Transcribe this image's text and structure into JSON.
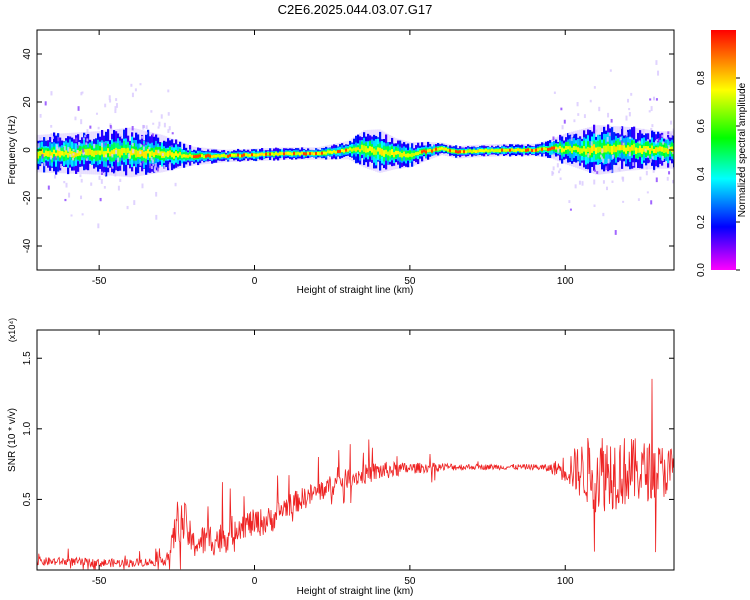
{
  "title": "C2E6.2025.044.03.07.G17",
  "chart_data": [
    {
      "type": "heatmap",
      "xlabel": "Height of straight line (km)",
      "ylabel": "Frequency (Hz)",
      "xlim": [
        -70,
        135
      ],
      "ylim": [
        -50,
        50
      ],
      "xticks": [
        -50,
        0,
        50,
        100
      ],
      "yticks": [
        -40,
        -20,
        0,
        20,
        40
      ],
      "colorbar": {
        "label": "Normalized spectral amplitude",
        "range": [
          0,
          1
        ],
        "ticks": [
          "0.0",
          "0.2",
          "0.4",
          "0.6",
          "0.8"
        ],
        "colormap": [
          "#ff00ff",
          "#0000ff",
          "#00ffff",
          "#00ff00",
          "#ffff00",
          "#ff0000"
        ]
      },
      "ridge": {
        "x": [
          -70,
          -50,
          -40,
          -30,
          -20,
          -10,
          0,
          10,
          20,
          30,
          35,
          40,
          45,
          50,
          55,
          60,
          65,
          70,
          80,
          90,
          95,
          100,
          110,
          120,
          130,
          135
        ],
        "freq": [
          -1.5,
          -1.2,
          -1.0,
          -1.5,
          -2.5,
          -2.5,
          -2.0,
          -1.5,
          -1.5,
          0,
          0.5,
          -0.5,
          -1.5,
          -2.0,
          -0.5,
          0.5,
          -1.0,
          -0.5,
          0,
          0,
          0.5,
          0.5,
          0,
          0.5,
          0,
          0
        ],
        "bandwidth_hz": [
          6,
          7,
          8,
          6,
          3,
          2,
          2,
          2,
          2,
          3,
          6,
          7,
          5,
          4,
          3,
          2,
          2,
          2,
          2,
          2,
          3,
          5,
          8,
          7,
          6,
          6
        ]
      }
    },
    {
      "type": "line",
      "xlabel": "Height of straight line (km)",
      "ylabel": "SNR (10 * v/v)",
      "y_multiplier": "(x10⁴)",
      "xlim": [
        -70,
        135
      ],
      "ylim": [
        0,
        1.7
      ],
      "xticks": [
        -50,
        0,
        50,
        100
      ],
      "yticks": [
        "0.5",
        "1.0",
        "1.5"
      ],
      "line_color": "#ee2222",
      "series": [
        {
          "x": [
            -70,
            -60,
            -50,
            -40,
            -30,
            -27,
            -25,
            -22,
            -20,
            -15,
            -10,
            -5,
            0,
            5,
            10,
            20,
            30,
            40,
            50,
            60,
            70,
            80,
            90,
            95,
            100,
            105,
            110,
            115,
            120,
            125,
            130,
            135
          ],
          "y": [
            0.06,
            0.06,
            0.05,
            0.05,
            0.06,
            0.12,
            0.35,
            0.32,
            0.18,
            0.22,
            0.22,
            0.32,
            0.33,
            0.35,
            0.45,
            0.55,
            0.65,
            0.7,
            0.72,
            0.73,
            0.73,
            0.73,
            0.73,
            0.72,
            0.72,
            0.7,
            0.7,
            0.7,
            0.7,
            0.7,
            0.7,
            0.7
          ],
          "noise": [
            0.03,
            0.03,
            0.03,
            0.03,
            0.03,
            0.08,
            0.15,
            0.15,
            0.1,
            0.12,
            0.12,
            0.1,
            0.1,
            0.1,
            0.08,
            0.08,
            0.07,
            0.07,
            0.04,
            0.03,
            0.02,
            0.02,
            0.02,
            0.03,
            0.1,
            0.2,
            0.3,
            0.28,
            0.25,
            0.22,
            0.2,
            0.18
          ]
        }
      ]
    }
  ]
}
